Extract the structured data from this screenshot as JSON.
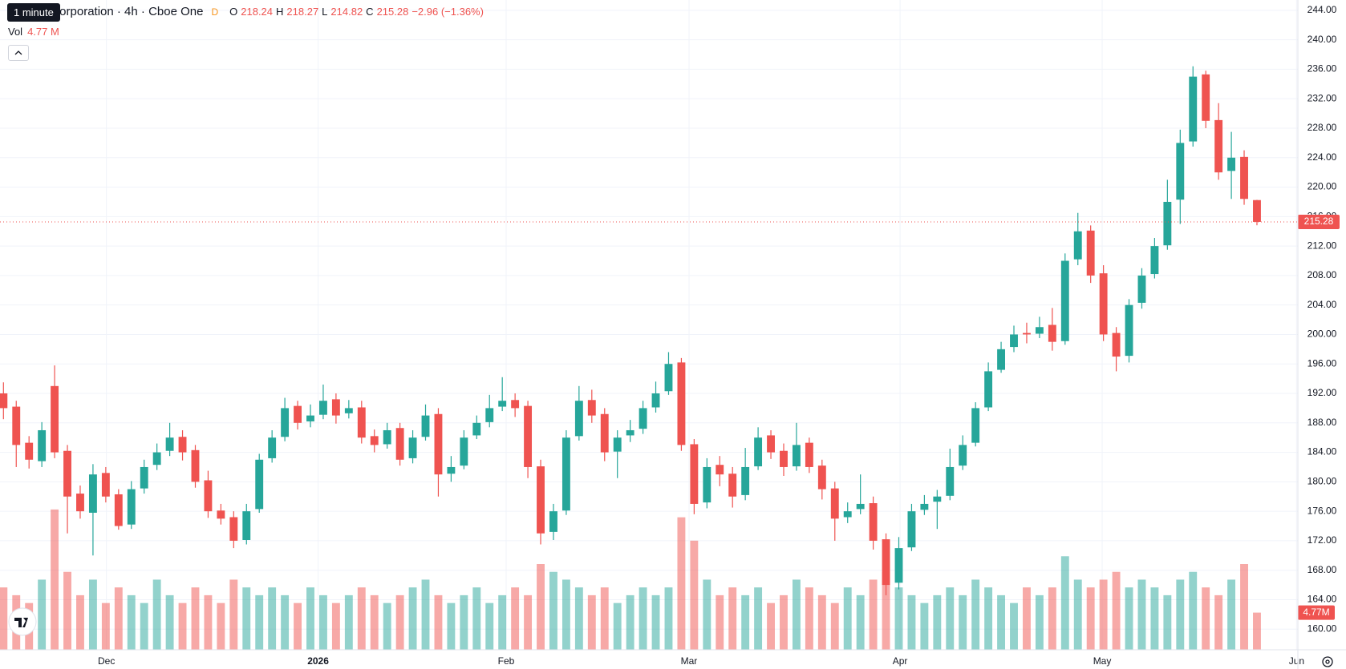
{
  "header": {
    "tooltip": "1 minute",
    "symbol_title": "NVIDIA Corporation · 4h · Cboe One",
    "badge": "D",
    "o_label": "O",
    "open": 218.24,
    "h_label": "H",
    "high": 218.27,
    "l_label": "L",
    "low": 214.82,
    "c_label": "C",
    "close": 215.28,
    "change": "−2.96 (−1.36%)",
    "vol_label": "Vol",
    "vol_value": "4.77 M"
  },
  "chart_data": {
    "type": "candlestick",
    "up_color": "#26a69a",
    "down_color": "#ef5350",
    "grid": true,
    "open": [
      192,
      190.2,
      185.3,
      182.8,
      193,
      184.2,
      178.4,
      175.8,
      181.2,
      178.3,
      174.2,
      179.1,
      182.3,
      184.2,
      186.1,
      184.3,
      180.2,
      176.1,
      175.2,
      172.1,
      176.3,
      183.2,
      186.1,
      190.3,
      188.2,
      189.1,
      191.2,
      189.3,
      190.1,
      186.2,
      185.1,
      187.3,
      183.2,
      186.1,
      189.2,
      181.1,
      182.2,
      186.3,
      188.1,
      190.2,
      191.1,
      190.3,
      182.1,
      173.2,
      176.1,
      186.2,
      191.1,
      189.2,
      184.1,
      186.3,
      187.2,
      190.1,
      192.3,
      196.2,
      185.1,
      177.2,
      182.3,
      181.1,
      178.2,
      182.1,
      186.3,
      184.2,
      182.1,
      185.3,
      182.2,
      179.1,
      175.2,
      176.3,
      177.1,
      172.2,
      166.3,
      171.1,
      176.2,
      177.3,
      178.1,
      182.2,
      185.3,
      190.1,
      195.2,
      198.3,
      200.2,
      200.1,
      201.3,
      199.1,
      210.2,
      214.1,
      208.3,
      200.2,
      197.1,
      204.3,
      208.2,
      212.1,
      218.3,
      226.2,
      235.3,
      229.1,
      222.2,
      224.1,
      218.24
    ],
    "high": [
      193.5,
      191,
      186.2,
      188.1,
      195.8,
      185,
      179.5,
      182.4,
      182,
      179,
      180.1,
      183,
      185.2,
      188,
      187,
      185,
      181.5,
      177,
      176,
      177,
      183.8,
      187,
      191.4,
      191,
      190.5,
      193.2,
      192,
      191.1,
      191,
      187.1,
      188,
      188,
      187,
      190.5,
      190,
      183.5,
      187,
      189,
      191.8,
      194.2,
      192,
      191,
      183,
      177,
      187,
      193,
      192.5,
      190,
      187,
      188.4,
      191,
      193.6,
      197.6,
      196.8,
      185.8,
      183.2,
      183.5,
      182,
      184.6,
      187.4,
      187,
      185.2,
      188,
      186,
      183,
      180,
      177.2,
      181,
      178,
      173,
      172.5,
      177,
      178.2,
      178.9,
      184.5,
      186.3,
      190.8,
      196.2,
      199,
      201.2,
      201.6,
      202.4,
      203.6,
      211,
      216.5,
      214.8,
      209.4,
      201,
      204.8,
      209,
      213.1,
      221,
      227.8,
      236.4,
      235.8,
      231.4,
      227.5,
      225,
      218.27
    ],
    "low": [
      188.5,
      182,
      181.8,
      182,
      183.2,
      173,
      175,
      170,
      177.2,
      173.5,
      173.6,
      178.4,
      181.6,
      183.5,
      182.9,
      179.2,
      175.1,
      174.2,
      171,
      171.5,
      175.8,
      182.6,
      185.5,
      187.1,
      187.4,
      188.5,
      187.9,
      188.6,
      185.2,
      184,
      184.5,
      182.2,
      182.5,
      185.6,
      178,
      180,
      181.7,
      185.8,
      187.4,
      189.6,
      188.8,
      180.5,
      171.5,
      172.1,
      175.5,
      185.6,
      188,
      182.8,
      180.5,
      185.4,
      186.5,
      189.4,
      191.8,
      184.2,
      175.6,
      176.4,
      179.4,
      176.5,
      177.5,
      181.6,
      183.1,
      180.8,
      181.5,
      181.2,
      177.6,
      172,
      174.4,
      175.6,
      170.8,
      164.6,
      165.4,
      170.6,
      175.5,
      173.6,
      177.5,
      181.6,
      184.8,
      189.6,
      194.8,
      197.6,
      198.8,
      199.5,
      197.8,
      198.6,
      209.4,
      207,
      199.1,
      195,
      196.2,
      203.5,
      207.6,
      211.5,
      215,
      225.5,
      228,
      221,
      218.4,
      217.6,
      214.82
    ],
    "close": [
      190,
      185,
      183,
      187,
      184,
      178,
      176,
      181,
      178,
      174,
      179,
      182,
      184,
      186,
      184,
      180,
      176,
      175,
      172,
      176,
      183,
      186,
      190,
      188,
      189,
      191,
      189,
      190,
      186,
      185,
      187,
      183,
      186,
      189,
      181,
      182,
      186,
      188,
      190,
      191,
      190,
      182,
      173,
      176,
      186,
      191,
      189,
      184,
      186,
      187,
      190,
      192,
      196,
      185,
      177,
      182,
      181,
      178,
      182,
      186,
      184,
      182,
      185,
      182,
      179,
      175,
      176,
      177,
      172,
      166,
      171,
      176,
      177,
      178,
      182,
      185,
      190,
      195,
      198,
      200,
      200,
      201,
      199,
      210,
      214,
      208,
      200,
      197,
      204,
      208,
      212,
      218,
      226,
      235,
      229,
      222,
      224,
      218.4,
      215.28
    ],
    "volume": [
      8,
      7,
      6,
      9,
      18,
      10,
      7,
      9,
      6,
      8,
      7,
      6,
      9,
      7,
      6,
      8,
      7,
      6,
      9,
      8,
      7,
      8,
      7,
      6,
      8,
      7,
      6,
      7,
      8,
      7,
      6,
      7,
      8,
      9,
      7,
      6,
      7,
      8,
      6,
      7,
      8,
      7,
      11,
      10,
      9,
      8,
      7,
      8,
      6,
      7,
      8,
      7,
      8,
      17,
      14,
      9,
      7,
      8,
      7,
      8,
      6,
      7,
      9,
      8,
      7,
      6,
      8,
      7,
      9,
      10,
      8,
      7,
      6,
      7,
      8,
      7,
      9,
      8,
      7,
      6,
      8,
      7,
      8,
      12,
      9,
      8,
      9,
      10,
      8,
      9,
      8,
      7,
      9,
      10,
      8,
      7,
      9,
      11,
      4.77
    ],
    "volume_tag": "4.77M",
    "volume_lim": [
      0,
      22
    ],
    "xlim": [
      -0.27,
      101.2
    ],
    "xticks": [
      {
        "value": 8.05,
        "label": "Dec"
      },
      {
        "value": 24.6,
        "label": "2026"
      },
      {
        "value": 39.3,
        "label": "Feb"
      },
      {
        "value": 53.6,
        "label": "Mar"
      },
      {
        "value": 70.1,
        "label": "Apr"
      },
      {
        "value": 85.9,
        "label": "May"
      },
      {
        "value": 101.1,
        "label": "Jun"
      }
    ],
    "ylim": [
      157.2,
      245.4
    ],
    "yticks": [
      {
        "value": 160,
        "label": "160.00"
      },
      {
        "value": 164,
        "label": "164.00"
      },
      {
        "value": 168,
        "label": "168.00"
      },
      {
        "value": 172,
        "label": "172.00"
      },
      {
        "value": 176,
        "label": "176.00"
      },
      {
        "value": 180,
        "label": "180.00"
      },
      {
        "value": 184,
        "label": "184.00"
      },
      {
        "value": 188,
        "label": "188.00"
      },
      {
        "value": 192,
        "label": "192.00"
      },
      {
        "value": 196,
        "label": "196.00"
      },
      {
        "value": 200,
        "label": "200.00"
      },
      {
        "value": 204,
        "label": "204.00"
      },
      {
        "value": 208,
        "label": "208.00"
      },
      {
        "value": 212,
        "label": "212.00"
      },
      {
        "value": 216,
        "label": "216.00"
      },
      {
        "value": 220,
        "label": "220.00"
      },
      {
        "value": 224,
        "label": "224.00"
      },
      {
        "value": 228,
        "label": "228.00"
      },
      {
        "value": 232,
        "label": "232.00"
      },
      {
        "value": 236,
        "label": "236.00"
      },
      {
        "value": 240,
        "label": "240.00"
      },
      {
        "value": 244,
        "label": "244.00"
      }
    ]
  }
}
